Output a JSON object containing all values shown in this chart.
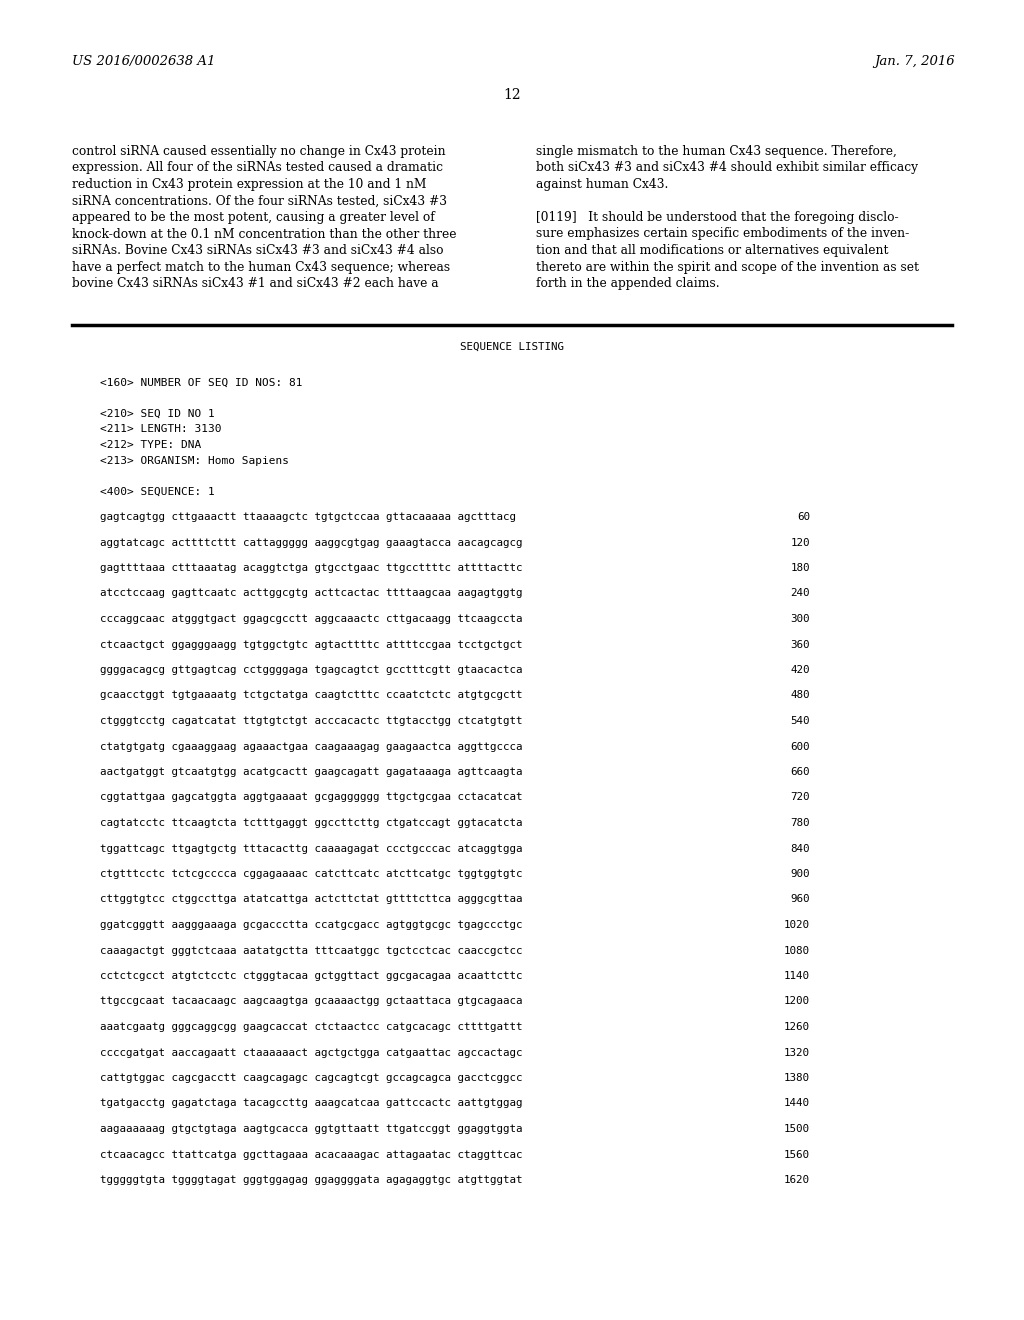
{
  "header_left": "US 2016/0002638 A1",
  "header_right": "Jan. 7, 2016",
  "page_number": "12",
  "body_text_left": [
    "control siRNA caused essentially no change in Cx43 protein",
    "expression. All four of the siRNAs tested caused a dramatic",
    "reduction in Cx43 protein expression at the 10 and 1 nM",
    "siRNA concentrations. Of the four siRNAs tested, siCx43 #3",
    "appeared to be the most potent, causing a greater level of",
    "knock-down at the 0.1 nM concentration than the other three",
    "siRNAs. Bovine Cx43 siRNAs siCx43 #3 and siCx43 #4 also",
    "have a perfect match to the human Cx43 sequence; whereas",
    "bovine Cx43 siRNAs siCx43 #1 and siCx43 #2 each have a"
  ],
  "body_text_right": [
    "single mismatch to the human Cx43 sequence. Therefore,",
    "both siCx43 #3 and siCx43 #4 should exhibit similar efficacy",
    "against human Cx43.",
    "",
    "[0119]   It should be understood that the foregoing disclo-",
    "sure emphasizes certain specific embodiments of the inven-",
    "tion and that all modifications or alternatives equivalent",
    "thereto are within the spirit and scope of the invention as set",
    "forth in the appended claims."
  ],
  "sequence_listing_title": "SEQUENCE LISTING",
  "seq_meta": [
    "<160> NUMBER OF SEQ ID NOS: 81",
    "",
    "<210> SEQ ID NO 1",
    "<211> LENGTH: 3130",
    "<212> TYPE: DNA",
    "<213> ORGANISM: Homo Sapiens",
    "",
    "<400> SEQUENCE: 1"
  ],
  "sequence_lines": [
    [
      "gagtcagtgg cttgaaactt ttaaaagctc tgtgctccaa gttacaaaaa agctttacg",
      "60"
    ],
    [
      "aggtatcagc acttttcttt cattaggggg aaggcgtgag gaaagtacca aacagcagcg",
      "120"
    ],
    [
      "gagttttaaa ctttaaatag acaggtctga gtgcctgaac ttgccttttc attttacttc",
      "180"
    ],
    [
      "atcctccaag gagttcaatc acttggcgtg acttcactac ttttaagcaa aagagtggtg",
      "240"
    ],
    [
      "cccaggcaac atgggtgact ggagcgcctt aggcaaactc cttgacaagg ttcaagccta",
      "300"
    ],
    [
      "ctcaactgct ggagggaagg tgtggctgtc agtacttttc attttccgaa tcctgctgct",
      "360"
    ],
    [
      "ggggacagcg gttgagtcag cctggggaga tgagcagtct gcctttcgtt gtaacactca",
      "420"
    ],
    [
      "gcaacctggt tgtgaaaatg tctgctatga caagtctttc ccaatctctc atgtgcgctt",
      "480"
    ],
    [
      "ctgggtcctg cagatcatat ttgtgtctgt acccacactc ttgtacctgg ctcatgtgtt",
      "540"
    ],
    [
      "ctatgtgatg cgaaaggaag agaaactgaa caagaaagag gaagaactca aggttgccca",
      "600"
    ],
    [
      "aactgatggt gtcaatgtgg acatgcactt gaagcagatt gagataaaga agttcaagta",
      "660"
    ],
    [
      "cggtattgaa gagcatggta aggtgaaaat gcgagggggg ttgctgcgaa cctacatcat",
      "720"
    ],
    [
      "cagtatcctc ttcaagtcta tctttgaggt ggccttcttg ctgatccagt ggtacatcta",
      "780"
    ],
    [
      "tggattcagc ttgagtgctg tttacacttg caaaagagat ccctgcccac atcaggtgga",
      "840"
    ],
    [
      "ctgtttcctc tctcgcccca cggagaaaac catcttcatc atcttcatgc tggtggtgtc",
      "900"
    ],
    [
      "cttggtgtcc ctggccttga atatcattga actcttctat gttttcttca agggcgttaa",
      "960"
    ],
    [
      "ggatcgggtt aagggaaaga gcgaccctta ccatgcgacc agtggtgcgc tgagccctgc",
      "1020"
    ],
    [
      "caaagactgt gggtctcaaa aatatgctta tttcaatggc tgctcctcac caaccgctcc",
      "1080"
    ],
    [
      "cctctcgcct atgtctcctc ctgggtacaa gctggttact ggcgacagaa acaattcttc",
      "1140"
    ],
    [
      "ttgccgcaat tacaacaagc aagcaagtga gcaaaactgg gctaattaca gtgcagaaca",
      "1200"
    ],
    [
      "aaatcgaatg gggcaggcgg gaagcaccat ctctaactcc catgcacagc cttttgattt",
      "1260"
    ],
    [
      "ccccgatgat aaccagaatt ctaaaaaact agctgctgga catgaattac agccactagc",
      "1320"
    ],
    [
      "cattgtggac cagcgacctt caagcagagc cagcagtcgt gccagcagca gacctcggcc",
      "1380"
    ],
    [
      "tgatgacctg gagatctaga tacagccttg aaagcatcaa gattccactc aattgtggag",
      "1440"
    ],
    [
      "aagaaaaaag gtgctgtaga aagtgcacca ggtgttaatt ttgatccggt ggaggtggta",
      "1500"
    ],
    [
      "ctcaacagcc ttattcatga ggcttagaaa acacaaagac attagaatac ctaggttcac",
      "1560"
    ],
    [
      "tgggggtgta tggggtagat gggtggagag ggaggggata agagaggtgc atgttggtat",
      "1620"
    ]
  ],
  "background_color": "#ffffff",
  "text_color": "#000000"
}
